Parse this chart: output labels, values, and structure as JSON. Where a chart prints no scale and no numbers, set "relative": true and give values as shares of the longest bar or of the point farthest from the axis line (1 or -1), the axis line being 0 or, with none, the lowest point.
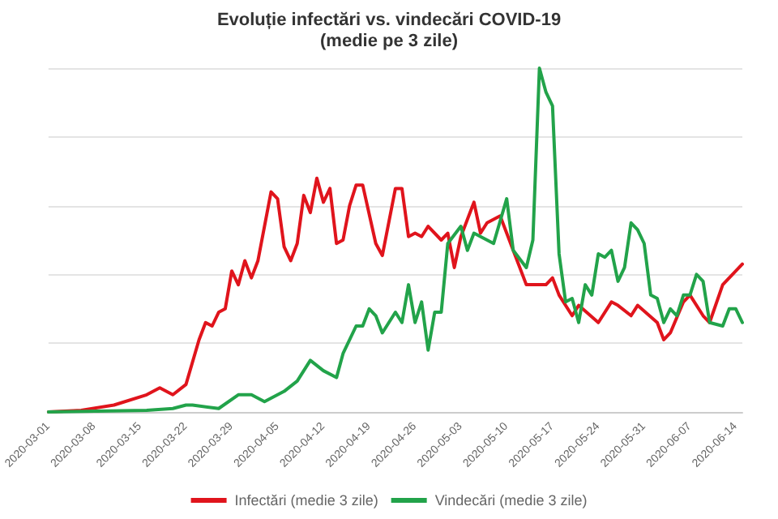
{
  "chart_data": {
    "type": "line",
    "title": "Evoluție infectări vs. vindecări COVID-19",
    "subtitle": "(medie pe 3 zile)",
    "relative": true,
    "grid": "y",
    "legend": "bottom",
    "marker": "none",
    "line_style": "solid",
    "xlim": [
      "2020-03-01",
      "2020-06-15"
    ],
    "xticks": [
      "2020-03-01",
      "2020-03-08",
      "2020-03-15",
      "2020-03-22",
      "2020-03-29",
      "2020-04-05",
      "2020-04-12",
      "2020-04-19",
      "2020-04-26",
      "2020-05-03",
      "2020-05-10",
      "2020-05-17",
      "2020-05-24",
      "2020-05-31",
      "2020-06-07",
      "2020-06-14"
    ],
    "series": [
      {
        "name": "Infectări (medie 3 zile)",
        "color": "#e0141c",
        "x": [
          "2020-03-01",
          "2020-03-06",
          "2020-03-11",
          "2020-03-16",
          "2020-03-18",
          "2020-03-20",
          "2020-03-22",
          "2020-03-24",
          "2020-03-25",
          "2020-03-26",
          "2020-03-27",
          "2020-03-28",
          "2020-03-29",
          "2020-03-30",
          "2020-03-31",
          "2020-04-01",
          "2020-04-02",
          "2020-04-04",
          "2020-04-05",
          "2020-04-06",
          "2020-04-07",
          "2020-04-08",
          "2020-04-09",
          "2020-04-10",
          "2020-04-11",
          "2020-04-12",
          "2020-04-13",
          "2020-04-14",
          "2020-04-15",
          "2020-04-16",
          "2020-04-17",
          "2020-04-18",
          "2020-04-20",
          "2020-04-21",
          "2020-04-23",
          "2020-04-24",
          "2020-04-25",
          "2020-04-26",
          "2020-04-27",
          "2020-04-28",
          "2020-04-30",
          "2020-05-01",
          "2020-05-02",
          "2020-05-03",
          "2020-05-05",
          "2020-05-06",
          "2020-05-07",
          "2020-05-09",
          "2020-05-11",
          "2020-05-13",
          "2020-05-14",
          "2020-05-16",
          "2020-05-17",
          "2020-05-18",
          "2020-05-20",
          "2020-05-21",
          "2020-05-24",
          "2020-05-26",
          "2020-05-27",
          "2020-05-29",
          "2020-05-30",
          "2020-06-02",
          "2020-06-03",
          "2020-06-04",
          "2020-06-06",
          "2020-06-07",
          "2020-06-09",
          "2020-06-10",
          "2020-06-12",
          "2020-06-15"
        ],
        "values": [
          0,
          0.005,
          0.02,
          0.05,
          0.07,
          0.05,
          0.08,
          0.21,
          0.26,
          0.25,
          0.29,
          0.3,
          0.41,
          0.37,
          0.44,
          0.39,
          0.44,
          0.64,
          0.62,
          0.48,
          0.44,
          0.49,
          0.63,
          0.58,
          0.68,
          0.61,
          0.65,
          0.49,
          0.5,
          0.6,
          0.66,
          0.66,
          0.49,
          0.455,
          0.65,
          0.65,
          0.51,
          0.52,
          0.51,
          0.54,
          0.5,
          0.52,
          0.42,
          0.51,
          0.61,
          0.52,
          0.55,
          0.57,
          0.47,
          0.37,
          0.37,
          0.37,
          0.39,
          0.34,
          0.28,
          0.31,
          0.26,
          0.32,
          0.31,
          0.28,
          0.31,
          0.26,
          0.21,
          0.23,
          0.32,
          0.34,
          0.28,
          0.26,
          0.37,
          0.43
        ]
      },
      {
        "name": "Vindecări (medie 3 zile)",
        "color": "#22a34a",
        "x": [
          "2020-03-01",
          "2020-03-16",
          "2020-03-20",
          "2020-03-22",
          "2020-03-23",
          "2020-03-27",
          "2020-03-30",
          "2020-04-01",
          "2020-04-03",
          "2020-04-06",
          "2020-04-08",
          "2020-04-10",
          "2020-04-12",
          "2020-04-14",
          "2020-04-15",
          "2020-04-17",
          "2020-04-18",
          "2020-04-19",
          "2020-04-20",
          "2020-04-21",
          "2020-04-23",
          "2020-04-24",
          "2020-04-25",
          "2020-04-26",
          "2020-04-27",
          "2020-04-28",
          "2020-04-29",
          "2020-04-30",
          "2020-05-01",
          "2020-05-03",
          "2020-05-04",
          "2020-05-05",
          "2020-05-07",
          "2020-05-08",
          "2020-05-10",
          "2020-05-11",
          "2020-05-13",
          "2020-05-14",
          "2020-05-15",
          "2020-05-16",
          "2020-05-17",
          "2020-05-18",
          "2020-05-19",
          "2020-05-20",
          "2020-05-21",
          "2020-05-22",
          "2020-05-23",
          "2020-05-24",
          "2020-05-25",
          "2020-05-26",
          "2020-05-27",
          "2020-05-28",
          "2020-05-29",
          "2020-05-30",
          "2020-05-31",
          "2020-06-01",
          "2020-06-02",
          "2020-06-03",
          "2020-06-04",
          "2020-06-05",
          "2020-06-06",
          "2020-06-07",
          "2020-06-08",
          "2020-06-09",
          "2020-06-10",
          "2020-06-12",
          "2020-06-13",
          "2020-06-14",
          "2020-06-15"
        ],
        "values": [
          0,
          0.005,
          0.01,
          0.02,
          0.02,
          0.01,
          0.05,
          0.05,
          0.03,
          0.06,
          0.09,
          0.15,
          0.12,
          0.1,
          0.17,
          0.25,
          0.25,
          0.3,
          0.28,
          0.23,
          0.29,
          0.26,
          0.37,
          0.26,
          0.32,
          0.18,
          0.29,
          0.29,
          0.49,
          0.54,
          0.47,
          0.52,
          0.5,
          0.49,
          0.62,
          0.47,
          0.42,
          0.5,
          1,
          0.93,
          0.89,
          0.46,
          0.32,
          0.33,
          0.26,
          0.37,
          0.34,
          0.46,
          0.45,
          0.47,
          0.38,
          0.42,
          0.55,
          0.53,
          0.49,
          0.34,
          0.33,
          0.26,
          0.3,
          0.28,
          0.34,
          0.34,
          0.4,
          0.38,
          0.26,
          0.25,
          0.3,
          0.3,
          0.26
        ]
      }
    ]
  }
}
